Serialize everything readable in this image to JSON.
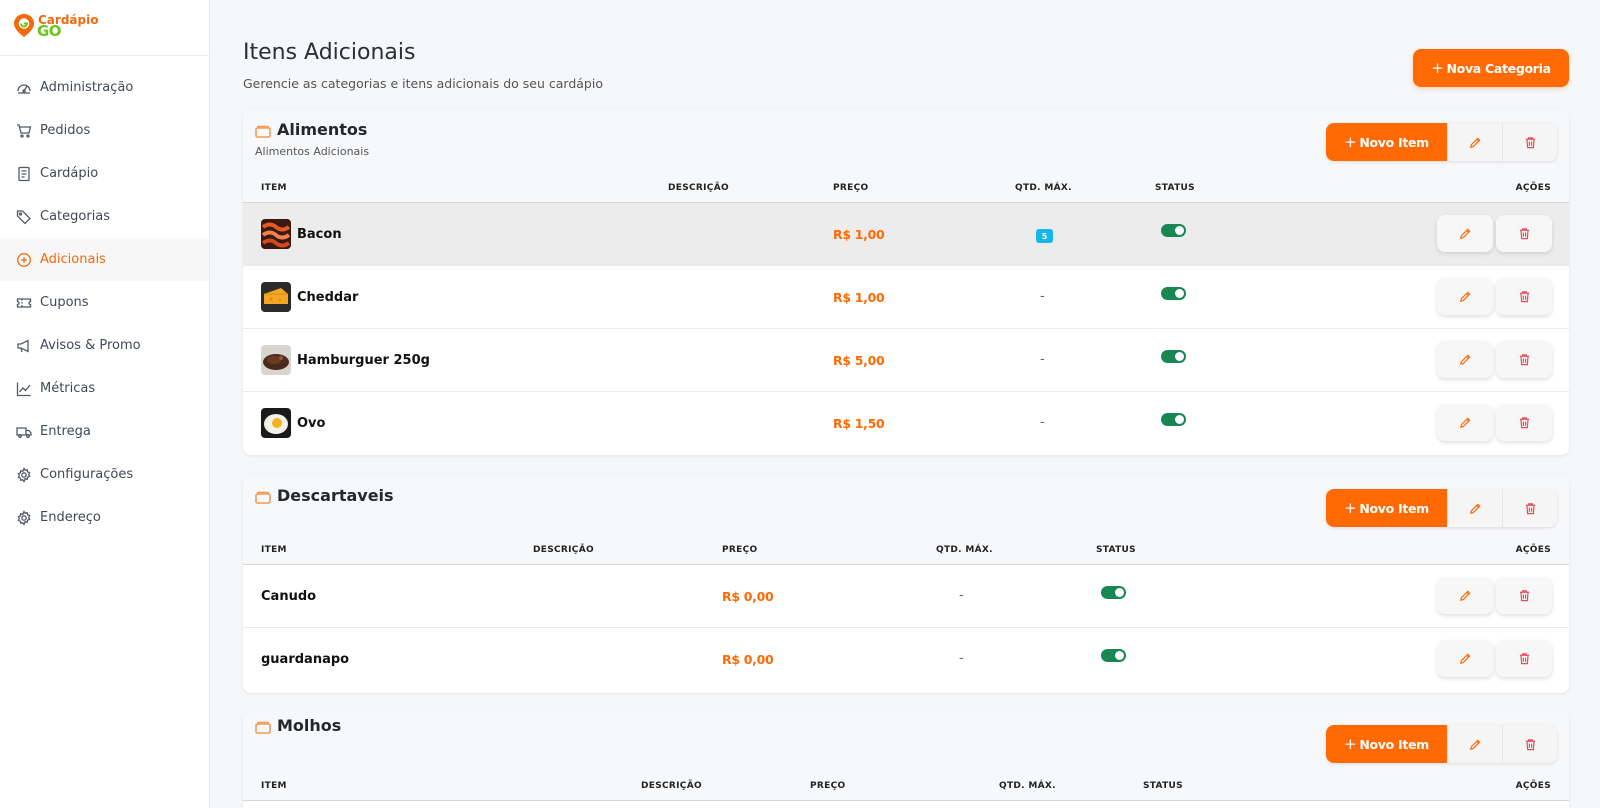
{
  "brand": {
    "line1": "Cardápio",
    "line2": "GO",
    "orange": "#f26a0f",
    "green": "#6cc51b"
  },
  "sidebar": {
    "items": [
      {
        "label": "Administração",
        "icon": "dashboard-gauge-icon",
        "active": false
      },
      {
        "label": "Pedidos",
        "icon": "cart-icon",
        "active": false
      },
      {
        "label": "Cardápio",
        "icon": "menu-document-icon",
        "active": false
      },
      {
        "label": "Categorias",
        "icon": "tag-icon",
        "active": false
      },
      {
        "label": "Adicionais",
        "icon": "plus-circle-icon",
        "active": true
      },
      {
        "label": "Cupons",
        "icon": "ticket-icon",
        "active": false
      },
      {
        "label": "Avisos & Promo",
        "icon": "megaphone-icon",
        "active": false
      },
      {
        "label": "Métricas",
        "icon": "line-chart-icon",
        "active": false
      },
      {
        "label": "Entrega",
        "icon": "truck-icon",
        "active": false
      },
      {
        "label": "Configurações",
        "icon": "gear-icon",
        "active": false
      },
      {
        "label": "Endereço",
        "icon": "gear-icon",
        "active": false
      }
    ]
  },
  "header": {
    "title": "Itens Adicionais",
    "subtitle": "Gerencie as categorias e itens adicionais do seu cardápio",
    "new_category_label": "Nova Categoria"
  },
  "table_headers": {
    "item": "ITEM",
    "description": "DESCRIÇÃO",
    "price": "PREÇO",
    "max_qty": "QTD. MÁX.",
    "status": "STATUS",
    "actions": "AÇÕES"
  },
  "new_item_label": "Novo Item",
  "categories": [
    {
      "name": "Alimentos",
      "description": "Alimentos Adicionais",
      "items": [
        {
          "name": "Bacon",
          "price": "R$ 1,00",
          "max_qty": "5",
          "status_on": true,
          "image": "bacon"
        },
        {
          "name": "Cheddar",
          "price": "R$ 1,00",
          "max_qty": "-",
          "status_on": true,
          "image": "cheddar"
        },
        {
          "name": "Hamburguer 250g",
          "price": "R$ 5,00",
          "max_qty": "-",
          "status_on": true,
          "image": "burger"
        },
        {
          "name": "Ovo",
          "price": "R$ 1,50",
          "max_qty": "-",
          "status_on": true,
          "image": "egg"
        }
      ]
    },
    {
      "name": "Descartaveis",
      "description": "",
      "items": [
        {
          "name": "Canudo",
          "price": "R$ 0,00",
          "max_qty": "-",
          "status_on": true
        },
        {
          "name": "guardanapo",
          "price": "R$ 0,00",
          "max_qty": "-",
          "status_on": true
        }
      ]
    },
    {
      "name": "Molhos",
      "description": "",
      "items": []
    }
  ],
  "colors": {
    "accent": "#ff6a05",
    "toggle_on": "#198754",
    "badge": "#16b6e6",
    "delete": "#e0515a"
  }
}
